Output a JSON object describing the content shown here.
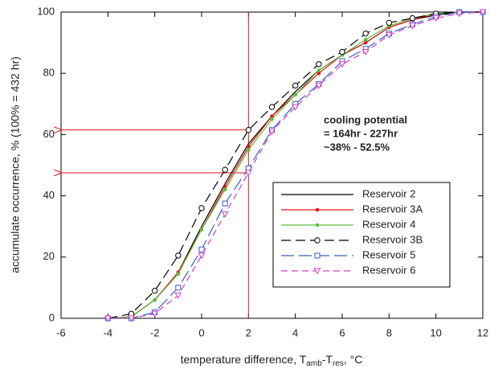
{
  "chart_data": {
    "type": "line",
    "ylabel": "accumulate occurrence, % (100% = 432 hr)",
    "xlabel": [
      "temperature difference, T",
      "amb",
      "-T",
      "res",
      ", °C"
    ],
    "x": [
      -4,
      -3,
      -2,
      -1,
      0,
      1,
      2,
      3,
      4,
      5,
      6,
      7,
      8,
      9,
      10,
      11,
      12
    ],
    "series": [
      {
        "name": "Reservoir 2",
        "color": "#000000",
        "dash": "none",
        "marker": "none",
        "values": [
          0,
          0.5,
          6,
          15,
          30,
          44,
          57,
          66,
          74,
          81,
          86,
          90,
          95,
          97.5,
          99,
          100,
          100
        ]
      },
      {
        "name": "Reservoir 3A",
        "color": "#e8121b",
        "dash": "none",
        "marker": "dot",
        "values": [
          0,
          0.5,
          6,
          15,
          29,
          43,
          56,
          66,
          73,
          80,
          86,
          90,
          95,
          97.5,
          99.5,
          100,
          100
        ]
      },
      {
        "name": "Reservoir 4",
        "color": "#5cbf3a",
        "dash": "none",
        "marker": "dot",
        "values": [
          0,
          0.5,
          6,
          14.5,
          29,
          42,
          55,
          65,
          73,
          81,
          86,
          91,
          95.5,
          98,
          99.5,
          100,
          100
        ]
      },
      {
        "name": "Reservoir 3B",
        "color": "#000000",
        "dash": "12 6",
        "marker": "circle",
        "values": [
          0,
          1.5,
          9,
          20.5,
          36,
          48.5,
          61.5,
          69,
          76,
          83,
          87,
          93,
          96.5,
          98,
          99.5,
          100,
          100
        ]
      },
      {
        "name": "Reservoir 5",
        "color": "#3a5cc7",
        "dash": "16 6",
        "marker": "square",
        "values": [
          0,
          0,
          2,
          10,
          22.5,
          37.5,
          49,
          61.5,
          70,
          76.5,
          84,
          88,
          93,
          96,
          98.5,
          100,
          100
        ]
      },
      {
        "name": "Reservoir 6",
        "color": "#d23fc8",
        "dash": "8 5",
        "marker": "triangle",
        "values": [
          0,
          0,
          1.5,
          7.5,
          20.5,
          34,
          47.5,
          61,
          69,
          76,
          83,
          87,
          92.5,
          95.5,
          98,
          99.5,
          100
        ]
      }
    ],
    "xlim": [
      -6,
      12
    ],
    "xticks": [
      -6,
      -4,
      -2,
      0,
      2,
      4,
      6,
      8,
      10,
      12
    ],
    "ylim": [
      0,
      100
    ],
    "yticks": [
      0,
      20,
      40,
      60,
      80,
      100
    ],
    "vline": 2,
    "hlines": [
      61.5,
      47.5
    ],
    "ref_color": "#e8121b",
    "annotation": [
      "cooling potential",
      "= 164hr - 227hr",
      "~38% - 52.5%"
    ],
    "legend": "lower right",
    "grid": false
  }
}
